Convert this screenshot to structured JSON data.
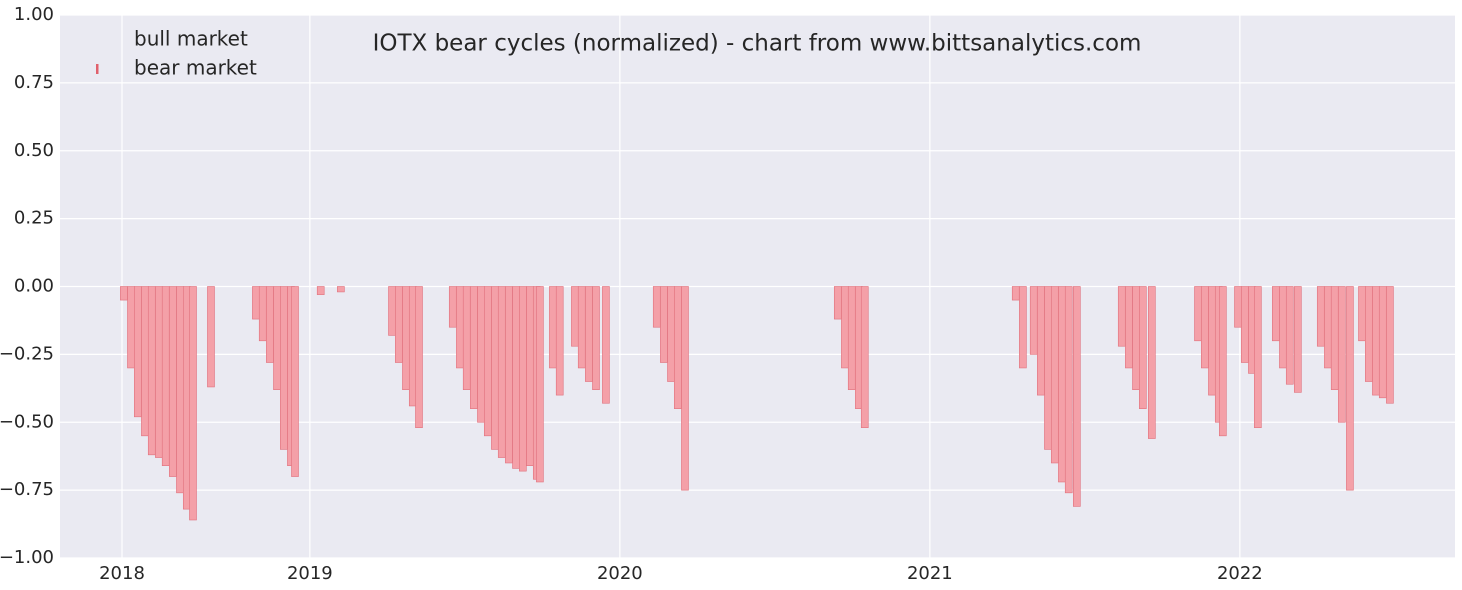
{
  "chart_data": {
    "type": "bar",
    "title": "IOTX bear cycles (normalized)  - chart from www.bittsanalytics.com",
    "x": [
      2018.4,
      2018.423,
      2018.445,
      2018.468,
      2018.49,
      2018.513,
      2018.535,
      2018.558,
      2018.581,
      2018.603,
      2018.623,
      2018.681,
      2018.826,
      2018.848,
      2018.871,
      2018.894,
      2018.916,
      2018.939,
      2018.952,
      2019.035,
      2019.1,
      2019.265,
      2019.287,
      2019.31,
      2019.332,
      2019.352,
      2019.461,
      2019.484,
      2019.506,
      2019.529,
      2019.552,
      2019.574,
      2019.597,
      2019.619,
      2019.642,
      2019.665,
      2019.687,
      2019.71,
      2019.732,
      2019.742,
      2019.784,
      2019.806,
      2019.855,
      2019.877,
      2019.9,
      2019.923,
      2019.955,
      2020.119,
      2020.142,
      2020.165,
      2020.187,
      2020.21,
      2020.703,
      2020.726,
      2020.748,
      2020.771,
      2020.79,
      2021.277,
      2021.3,
      2021.335,
      2021.358,
      2021.381,
      2021.403,
      2021.426,
      2021.448,
      2021.474,
      2021.619,
      2021.642,
      2021.665,
      2021.687,
      2021.716,
      2021.865,
      2021.887,
      2021.91,
      2021.932,
      2021.945,
      2021.994,
      2022.016,
      2022.039,
      2022.058,
      2022.116,
      2022.139,
      2022.161,
      2022.187,
      2022.261,
      2022.284,
      2022.306,
      2022.329,
      2022.355,
      2022.394,
      2022.416,
      2022.439,
      2022.461,
      2022.484
    ],
    "series": [
      {
        "name": "bull market",
        "color": "#ffffff",
        "values": [
          null,
          null,
          null,
          null,
          null,
          null,
          null,
          null,
          null,
          null,
          null,
          null,
          null,
          null,
          null,
          null,
          null,
          null,
          null,
          null,
          null,
          null,
          null,
          null,
          null,
          null,
          null,
          null,
          null,
          null,
          null,
          null,
          null,
          null,
          null,
          null,
          null,
          null,
          null,
          null,
          null,
          null,
          null,
          null,
          null,
          null,
          null,
          null,
          null,
          null,
          null,
          null,
          null,
          null,
          null,
          null,
          null,
          null,
          null,
          null,
          null,
          null,
          null,
          null,
          null,
          null,
          null,
          null,
          null,
          null,
          null,
          null,
          null,
          null,
          null,
          null,
          null,
          null,
          null,
          null,
          null,
          null,
          null,
          null,
          null,
          null,
          null,
          null,
          null,
          null,
          null,
          null,
          null,
          null
        ]
      },
      {
        "name": "bear market",
        "color": "#f4a0a8",
        "values": [
          -0.05,
          -0.3,
          -0.48,
          -0.55,
          -0.62,
          -0.63,
          -0.66,
          -0.7,
          -0.76,
          -0.82,
          -0.86,
          -0.37,
          -0.12,
          -0.2,
          -0.28,
          -0.38,
          -0.6,
          -0.66,
          -0.7,
          -0.03,
          -0.02,
          -0.18,
          -0.28,
          -0.38,
          -0.44,
          -0.52,
          -0.15,
          -0.3,
          -0.38,
          -0.45,
          -0.5,
          -0.55,
          -0.6,
          -0.63,
          -0.65,
          -0.67,
          -0.68,
          -0.66,
          -0.71,
          -0.72,
          -0.3,
          -0.4,
          -0.22,
          -0.3,
          -0.35,
          -0.38,
          -0.43,
          -0.15,
          -0.28,
          -0.35,
          -0.45,
          -0.75,
          -0.12,
          -0.3,
          -0.38,
          -0.45,
          -0.52,
          -0.05,
          -0.3,
          -0.25,
          -0.4,
          -0.6,
          -0.65,
          -0.72,
          -0.76,
          -0.81,
          -0.22,
          -0.3,
          -0.38,
          -0.45,
          -0.56,
          -0.2,
          -0.3,
          -0.4,
          -0.5,
          -0.55,
          -0.15,
          -0.28,
          -0.32,
          -0.52,
          -0.2,
          -0.3,
          -0.36,
          -0.39,
          -0.22,
          -0.3,
          -0.38,
          -0.5,
          -0.75,
          -0.2,
          -0.35,
          -0.4,
          -0.41,
          -0.43
        ]
      }
    ],
    "xlim": [
      2018.194,
      2022.694
    ],
    "xticks": [
      {
        "value": 2018.394,
        "label": "2018"
      },
      2019,
      2020,
      2021,
      2022
    ],
    "ylim": [
      -1,
      1
    ],
    "yticks": [
      {
        "value": -1,
        "label": "−1.00"
      },
      {
        "value": -0.75,
        "label": "−0.75"
      },
      {
        "value": -0.5,
        "label": "−0.50"
      },
      {
        "value": -0.25,
        "label": "−0.25"
      },
      {
        "value": 0,
        "label": "0.00"
      },
      {
        "value": 0.25,
        "label": "0.25"
      },
      {
        "value": 0.5,
        "label": "0.50"
      },
      {
        "value": 0.75,
        "label": "0.75"
      },
      {
        "value": 1,
        "label": "1.00"
      }
    ],
    "grid": true,
    "legend": "upper left"
  }
}
